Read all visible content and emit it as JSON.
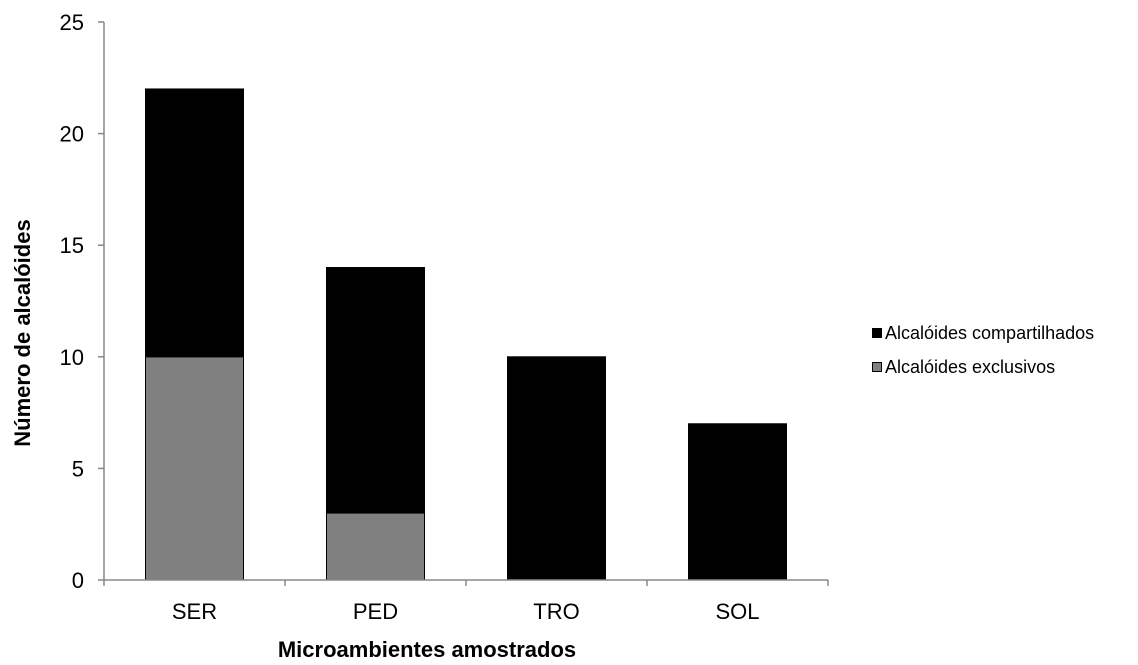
{
  "chart_data": {
    "type": "bar",
    "stacked": true,
    "categories": [
      "SER",
      "PED",
      "TRO",
      "SOL"
    ],
    "series": [
      {
        "name": "Alcalóides exclusivos",
        "values": [
          10,
          3,
          0,
          0
        ],
        "color": "#808080"
      },
      {
        "name": "Alcalóides compartilhados",
        "values": [
          12,
          11,
          10,
          7
        ],
        "color": "#000000"
      }
    ],
    "xlabel": "Microambientes amostrados",
    "ylabel": "Número de alcalóides",
    "ylim": [
      0,
      25
    ],
    "yticks": [
      "0",
      "5",
      "10",
      "15",
      "20",
      "25"
    ],
    "grid": false,
    "legend_position": "right"
  },
  "legend": [
    {
      "label": "Alcalóides compartilhados",
      "color": "#000000"
    },
    {
      "label": "Alcalóides exclusivos",
      "color": "#808080"
    }
  ]
}
